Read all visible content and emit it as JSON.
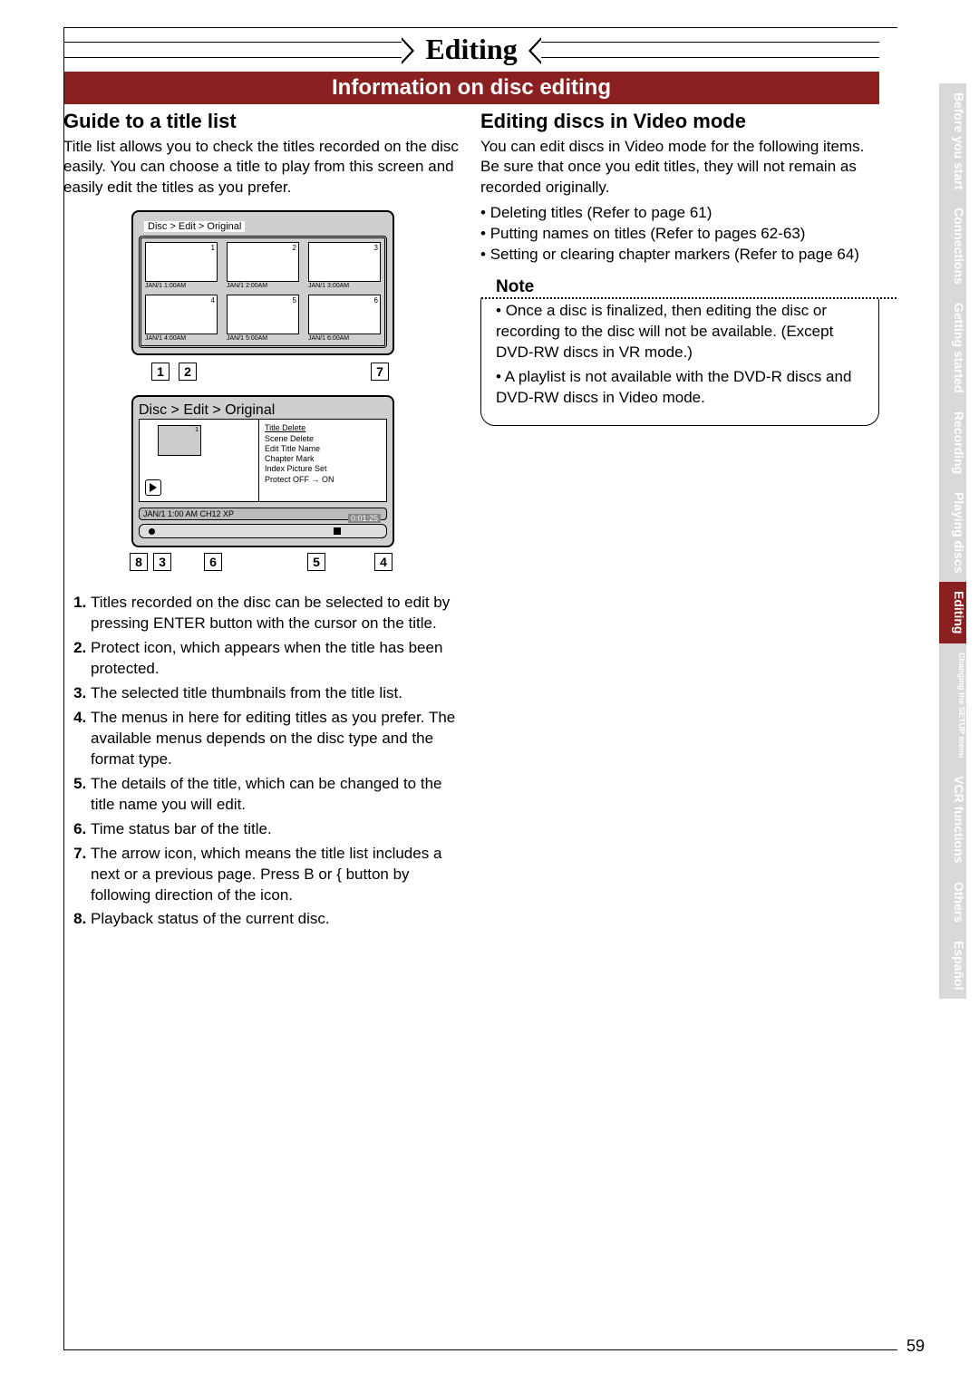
{
  "chapter_title": "Editing",
  "section_bar": "Information on disc editing",
  "left": {
    "subhead": "Guide to a title list",
    "intro": "Title list allows you to check the titles recorded on the disc easily. You can choose a title to play from this screen and easily edit the titles as you prefer.",
    "screen1": {
      "breadcrumb": "Disc > Edit > Original",
      "thumbs": [
        {
          "num": "1",
          "label": "JAN/1  1:00AM"
        },
        {
          "num": "2",
          "label": "JAN/1  2:00AM"
        },
        {
          "num": "3",
          "label": "JAN/1  3:00AM"
        },
        {
          "num": "4",
          "label": "JAN/1  4:00AM"
        },
        {
          "num": "5",
          "label": "JAN/1  5:00AM"
        },
        {
          "num": "6",
          "label": "JAN/1  6:00AM"
        }
      ],
      "callouts_left": [
        "1",
        "2"
      ],
      "callouts_right": [
        "7"
      ]
    },
    "screen2": {
      "breadcrumb": "Disc > Edit > Original",
      "thumb_num": "1",
      "menu": [
        "Title Delete",
        "Scene Delete",
        "Edit Title Name",
        "Chapter Mark",
        "Index Picture Set",
        "Protect OFF → ON"
      ],
      "detail": "JAN/1  1:00 AM  CH12     XP",
      "time": "0:01:25",
      "callouts": [
        "8",
        "3",
        "6",
        "5",
        "4"
      ]
    },
    "legend": [
      "Titles recorded on the disc can be selected to edit by pressing ENTER button with the cursor on the title.",
      "Protect icon, which appears when the title has been protected.",
      "The selected title thumbnails from the title list.",
      "The menus in here for editing titles as you prefer. The available menus depends on the disc type and the format type.",
      "The details of the title, which can be changed to the title name you will edit.",
      "Time status bar of the title.",
      "The arrow icon, which means the title list includes a next or a previous page. Press B or { button by following direction of the icon.",
      "Playback status of the current disc."
    ]
  },
  "right": {
    "subhead": "Editing discs in Video mode",
    "intro": "You can edit discs in Video mode for the following items. Be sure that once you edit titles, they will not remain as recorded originally.",
    "bullets": [
      "Deleting titles (Refer to page 61)",
      "Putting names on titles (Refer to pages 62-63)",
      "Setting or clearing chapter markers (Refer to page 64)"
    ],
    "note_label": "Note",
    "note_items": [
      "Once a disc is finalized, then editing the disc or recording to the disc will not be available. (Except DVD-RW discs in VR mode.)",
      "A playlist is not available with the DVD-R discs and DVD-RW discs in Video mode."
    ]
  },
  "side_tabs": [
    {
      "label": "Before you start",
      "active": false,
      "small": false
    },
    {
      "label": "Connections",
      "active": false,
      "small": false
    },
    {
      "label": "Getting started",
      "active": false,
      "small": false
    },
    {
      "label": "Recording",
      "active": false,
      "small": false
    },
    {
      "label": "Playing discs",
      "active": false,
      "small": false
    },
    {
      "label": "Editing",
      "active": true,
      "small": false
    },
    {
      "label": "Changing the SETUP menu",
      "active": false,
      "small": true
    },
    {
      "label": "VCR functions",
      "active": false,
      "small": false
    },
    {
      "label": "Others",
      "active": false,
      "small": false
    },
    {
      "label": "Español",
      "active": false,
      "small": false
    }
  ],
  "page_number": "59",
  "colors": {
    "accent": "#8a201f",
    "tab_inactive_bg": "#d9d9d9",
    "tab_text": "#ffffff",
    "screen_bg": "#cfcfcf"
  }
}
